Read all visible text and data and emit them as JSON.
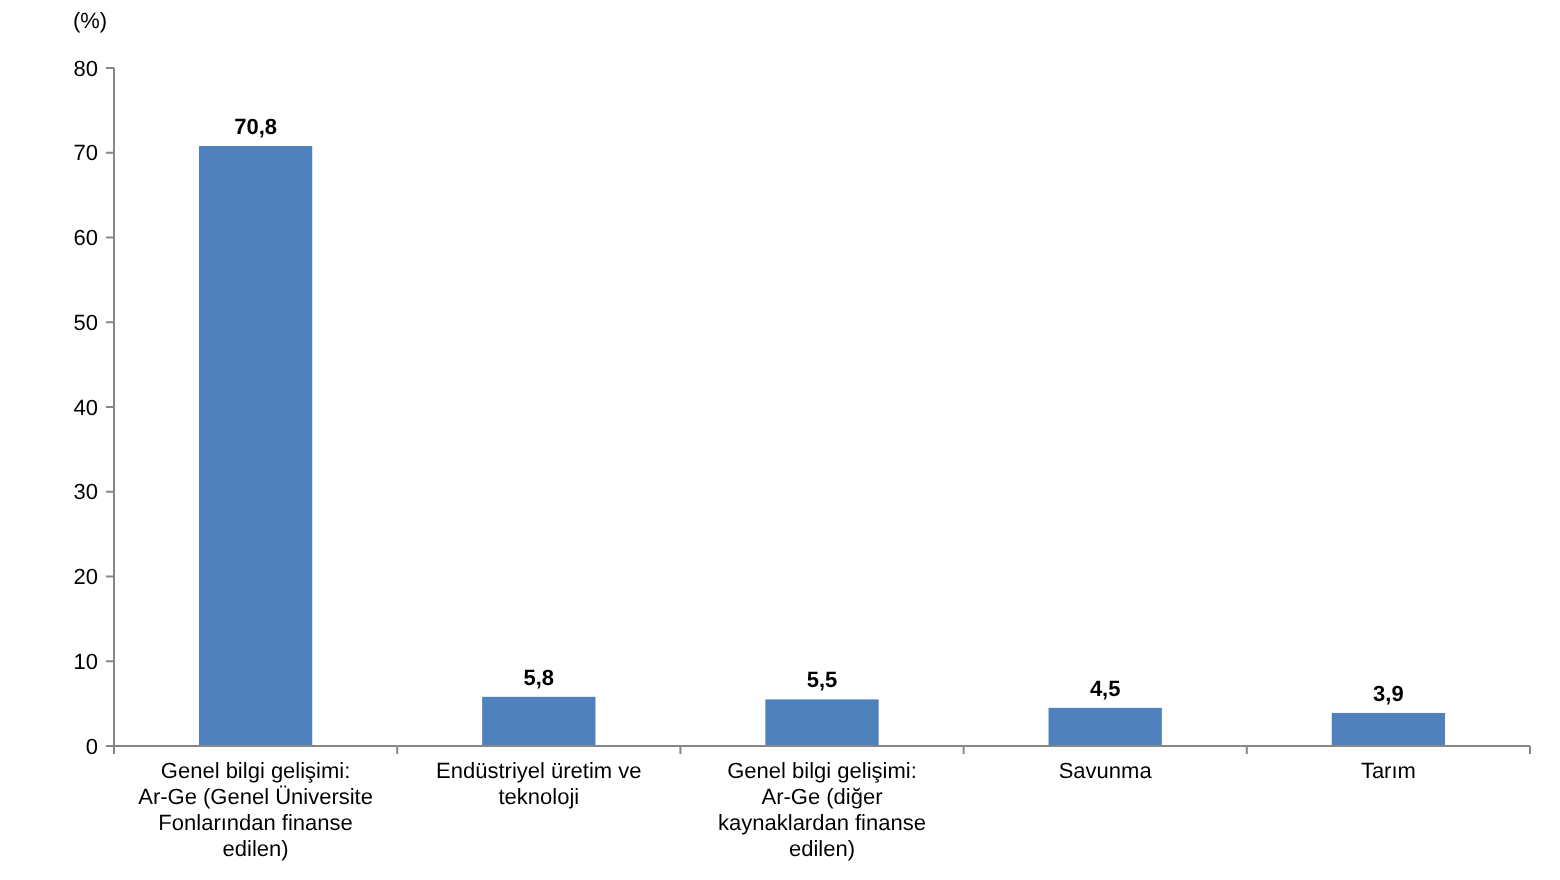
{
  "chart_data": {
    "type": "bar",
    "ylabel": "(%)",
    "categories": [
      "Genel bilgi gelişimi: Ar-Ge (Genel Üniversite Fonlarından finanse edilen)",
      "Endüstriyel üretim ve teknoloji",
      "Genel bilgi gelişimi: Ar-Ge (diğer kaynaklardan finanse edilen)",
      "Savunma",
      "Tarım"
    ],
    "values": [
      70.8,
      5.8,
      5.5,
      4.5,
      3.9
    ],
    "value_labels": [
      "70,8",
      "5,8",
      "5,5",
      "4,5",
      "3,9"
    ],
    "color": "#4f81bd",
    "ylim": [
      0,
      80
    ],
    "yticks": [
      0,
      10,
      20,
      30,
      40,
      50,
      60,
      70,
      80
    ],
    "grid": false
  }
}
